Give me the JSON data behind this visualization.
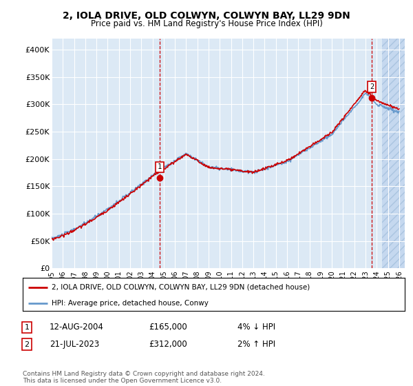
{
  "title": "2, IOLA DRIVE, OLD COLWYN, COLWYN BAY, LL29 9DN",
  "subtitle": "Price paid vs. HM Land Registry's House Price Index (HPI)",
  "ylabel_ticks": [
    "£0",
    "£50K",
    "£100K",
    "£150K",
    "£200K",
    "£250K",
    "£300K",
    "£350K",
    "£400K"
  ],
  "ytick_values": [
    0,
    50000,
    100000,
    150000,
    200000,
    250000,
    300000,
    350000,
    400000
  ],
  "ylim": [
    0,
    420000
  ],
  "xlim_start": 1995.0,
  "xlim_end": 2026.5,
  "background_color": "#dce9f5",
  "grid_color": "#ffffff",
  "line1_color": "#cc0000",
  "line2_color": "#6699cc",
  "marker1_date": 2004.62,
  "marker1_value": 165000,
  "marker2_date": 2023.55,
  "marker2_value": 312000,
  "legend_line1": "2, IOLA DRIVE, OLD COLWYN, COLWYN BAY, LL29 9DN (detached house)",
  "legend_line2": "HPI: Average price, detached house, Conwy",
  "sale1_label": "1",
  "sale1_date": "12-AUG-2004",
  "sale1_price": "£165,000",
  "sale1_hpi": "4% ↓ HPI",
  "sale2_label": "2",
  "sale2_date": "21-JUL-2023",
  "sale2_price": "£312,000",
  "sale2_hpi": "2% ↑ HPI",
  "footer": "Contains HM Land Registry data © Crown copyright and database right 2024.\nThis data is licensed under the Open Government Licence v3.0.",
  "xtick_years": [
    1995,
    1996,
    1997,
    1998,
    1999,
    2000,
    2001,
    2002,
    2003,
    2004,
    2005,
    2006,
    2007,
    2008,
    2009,
    2010,
    2011,
    2012,
    2013,
    2014,
    2015,
    2016,
    2017,
    2018,
    2019,
    2020,
    2021,
    2022,
    2023,
    2024,
    2025,
    2026
  ]
}
